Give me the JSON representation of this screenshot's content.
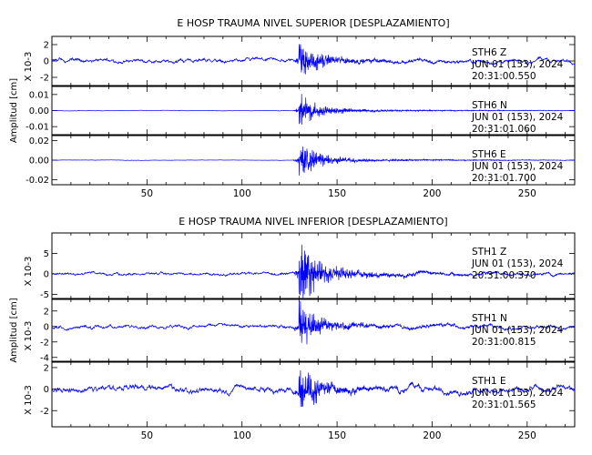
{
  "chart_data": [
    {
      "type": "line",
      "title": "E HOSP TRAUMA NIVEL SUPERIOR [DESPLAZAMIENTO]",
      "ylabel": "Amplitud [cm]",
      "xlim": [
        0,
        275
      ],
      "xticks": [
        50,
        100,
        150,
        200,
        250
      ],
      "event_time": 130,
      "series": [
        {
          "name": "STH6 Z",
          "info": [
            "STH6   Z",
            "JUN 01 (153), 2024",
            "20:31:00.550"
          ],
          "ylim": [
            -3,
            3
          ],
          "yticks": [
            -2,
            0,
            2
          ],
          "ytick_labels": [
            "-2",
            "0",
            "2"
          ],
          "unit_label": "X 10-3",
          "amp_peak": 2.6,
          "amp_bg": 0.45
        },
        {
          "name": "STH6 N",
          "info": [
            "STH6   N",
            "JUN 01 (153), 2024",
            "20:31:01.060"
          ],
          "ylim": [
            -0.015,
            0.015
          ],
          "yticks": [
            -0.01,
            0.0,
            0.01
          ],
          "ytick_labels": [
            "-0.01",
            "0.00",
            "0.01"
          ],
          "unit_label": "",
          "amp_peak": 0.011,
          "amp_bg": 0.0003
        },
        {
          "name": "STH6 E",
          "info": [
            "STH6   E",
            "JUN 01 (153), 2024",
            "20:31:01.700"
          ],
          "ylim": [
            -0.025,
            0.025
          ],
          "yticks": [
            -0.02,
            0.0,
            0.02
          ],
          "ytick_labels": [
            "-0.02",
            "0.00",
            "0.02"
          ],
          "unit_label": "",
          "amp_peak": 0.02,
          "amp_bg": 0.0004
        }
      ]
    },
    {
      "type": "line",
      "title": "E HOSP TRAUMA NIVEL INFERIOR [DESPLAZAMIENTO]",
      "ylabel": "Amplitud [cm]",
      "xlim": [
        0,
        275
      ],
      "xticks": [
        50,
        100,
        150,
        200,
        250
      ],
      "event_time": 130,
      "series": [
        {
          "name": "STH1 Z",
          "info": [
            "STH1   Z",
            "JUN 01 (153), 2024",
            "20:31:00.370"
          ],
          "ylim": [
            -6,
            10
          ],
          "yticks": [
            -5,
            0,
            5
          ],
          "ytick_labels": [
            "-5",
            "0",
            "5"
          ],
          "unit_label": "X 10-3",
          "amp_peak": 9,
          "amp_bg": 0.7
        },
        {
          "name": "STH1 N",
          "info": [
            "STH1   N",
            "JUN 01 (153), 2024",
            "20:31:00.815"
          ],
          "ylim": [
            -4.5,
            3.5
          ],
          "yticks": [
            -4,
            -2,
            0,
            2
          ],
          "ytick_labels": [
            "-4",
            "-2",
            "0",
            "2"
          ],
          "unit_label": "X 10-3",
          "amp_peak": 3.4,
          "amp_bg": 0.45
        },
        {
          "name": "STH1 E",
          "info": [
            "STH1   E",
            "JUN 01 (153), 2024",
            "20:31:01.565"
          ],
          "ylim": [
            -3.5,
            2.5
          ],
          "yticks": [
            -2,
            0,
            2
          ],
          "ytick_labels": [
            "-2",
            "0",
            "2"
          ],
          "unit_label": "X 10-3",
          "amp_peak": 2.3,
          "amp_bg": 0.55
        }
      ]
    }
  ]
}
